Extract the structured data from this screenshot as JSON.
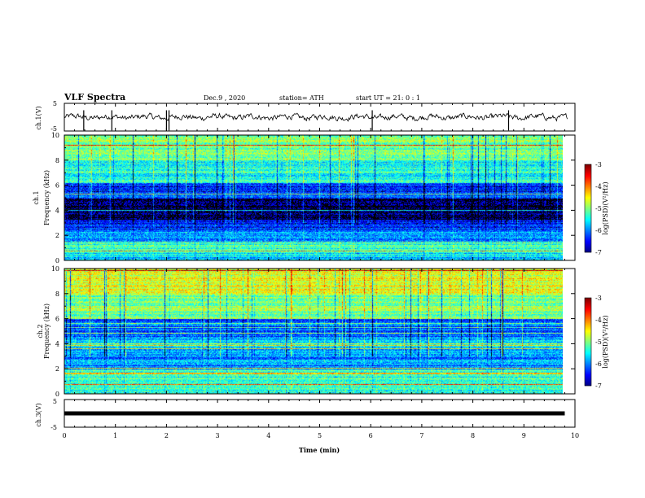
{
  "header": {
    "title": "VLF Spectra",
    "date": "Dec.9 , 2020",
    "station": "station= ATH",
    "start": "start UT = 21: 0 : 1"
  },
  "chart_data": [
    {
      "type": "line",
      "name": "top-waveform",
      "ylabel": "ch.1(V)",
      "ylim": [
        -5,
        5
      ],
      "y_ticks": [
        "5",
        "-5"
      ],
      "xlim": [
        0,
        10
      ],
      "x_ticks": [
        "0",
        "1",
        "2",
        "3",
        "4",
        "5",
        "6",
        "7",
        "8",
        "9",
        "10"
      ],
      "approx_level": 0,
      "approx_amplitude": 1,
      "spike_times": [
        0.38,
        0.93,
        2.0,
        2.05,
        6.03,
        8.7
      ]
    },
    {
      "type": "heatmap",
      "name": "spectrogram-1",
      "ylabel": "ch.1 Frequency (kHz)",
      "ylim": [
        0,
        10
      ],
      "y_ticks": [
        "0",
        "2",
        "4",
        "6",
        "8",
        "10"
      ],
      "xlim": [
        0,
        10
      ],
      "colorbar": {
        "label": "log(PSD)(V²/Hz)",
        "ticks": [
          "-3",
          "-4",
          "-5",
          "-6",
          "-7"
        ],
        "range": [
          -7,
          -3
        ]
      },
      "bands": [
        {
          "from": 0,
          "to": 0.6,
          "level": -5.6
        },
        {
          "from": 0.6,
          "to": 1.5,
          "level": -5.3
        },
        {
          "from": 1.5,
          "to": 2.5,
          "level": -5.9
        },
        {
          "from": 2.5,
          "to": 3.3,
          "level": -6.3
        },
        {
          "from": 3.3,
          "to": 5.0,
          "level": -6.9
        },
        {
          "from": 5.0,
          "to": 6.2,
          "level": -6.3
        },
        {
          "from": 6.2,
          "to": 8.0,
          "level": -5.4
        },
        {
          "from": 8.0,
          "to": 10,
          "level": -5.0
        }
      ]
    },
    {
      "type": "heatmap",
      "name": "spectrogram-2",
      "ylabel": "ch.2 Frequency (kHz)",
      "ylim": [
        0,
        10
      ],
      "y_ticks": [
        "0",
        "2",
        "4",
        "6",
        "8",
        "10"
      ],
      "xlim": [
        0,
        10
      ],
      "colorbar": {
        "label": "log(PSD)(V²/Hz)",
        "ticks": [
          "-3",
          "-4",
          "-5",
          "-6",
          "-7"
        ],
        "range": [
          -7,
          -3
        ]
      },
      "bands": [
        {
          "from": 0,
          "to": 2.0,
          "level": -5.3
        },
        {
          "from": 2.0,
          "to": 3.0,
          "level": -5.9
        },
        {
          "from": 3.0,
          "to": 4.5,
          "level": -5.7
        },
        {
          "from": 4.5,
          "to": 6.0,
          "level": -6.1
        },
        {
          "from": 6.0,
          "to": 8.0,
          "level": -5.0
        },
        {
          "from": 8.0,
          "to": 10,
          "level": -4.6
        }
      ]
    },
    {
      "type": "line",
      "name": "bottom-waveform",
      "ylabel": "ch.3(V)",
      "ylim": [
        -5,
        5
      ],
      "y_ticks": [
        "5",
        "-5"
      ],
      "xlim": [
        0,
        10
      ],
      "x_ticks": [
        "0",
        "1",
        "2",
        "3",
        "4",
        "5",
        "6",
        "7",
        "8",
        "9",
        "10"
      ],
      "xlabel": "Time (min)",
      "approx_level": 0,
      "data_end": 9.8
    }
  ]
}
